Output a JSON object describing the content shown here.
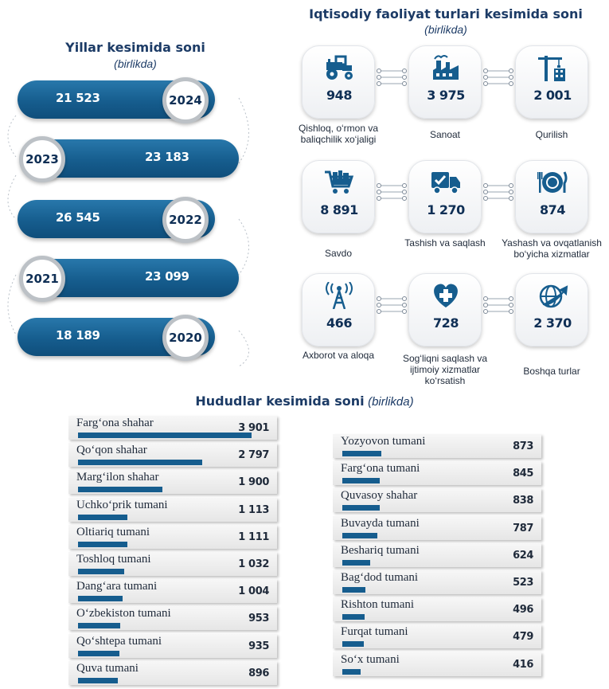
{
  "years_section": {
    "title": "Yillar kesimida soni",
    "unit": "(birlikda)"
  },
  "activity_section": {
    "title": "Iqtisodiy faoliyat turlari kesimida soni",
    "unit": "(birlikda)"
  },
  "regions_section": {
    "title": "Hududlar kesimida soni",
    "unit": "(birlikda)"
  },
  "colors": {
    "primary": "#165d8e",
    "dark_text": "#0f2f55",
    "title": "#1c3b66"
  },
  "chart_data": [
    {
      "type": "bar",
      "title": "Yillar kesimida soni",
      "categories": [
        "2024",
        "2023",
        "2022",
        "2021",
        "2020"
      ],
      "values": [
        21523,
        23183,
        26545,
        23099,
        18189
      ],
      "labels": [
        "21 523",
        "23 183",
        "26 545",
        "23 099",
        "18 189"
      ]
    },
    {
      "type": "table",
      "title": "Iqtisodiy faoliyat turlari kesimida soni",
      "items": [
        {
          "label": "Qishloq, o‘rmon va baliqchilik xo‘jaligi",
          "value": 948,
          "display": "948",
          "icon": "tractor-icon"
        },
        {
          "label": "Sanoat",
          "value": 3975,
          "display": "3 975",
          "icon": "factory-icon"
        },
        {
          "label": "Qurilish",
          "value": 2001,
          "display": "2 001",
          "icon": "crane-icon"
        },
        {
          "label": "Savdo",
          "value": 8891,
          "display": "8 891",
          "icon": "shopping-cart-icon"
        },
        {
          "label": "Tashish va saqlash",
          "value": 1270,
          "display": "1 270",
          "icon": "delivery-truck-icon"
        },
        {
          "label": "Yashash va ovqatlanish bo‘yicha xizmatlar",
          "value": 874,
          "display": "874",
          "icon": "plate-cutlery-icon"
        },
        {
          "label": "Axborot va aloqa",
          "value": 466,
          "display": "466",
          "icon": "antenna-tower-icon"
        },
        {
          "label": "Sog‘liqni saqlash va ijtimoiy xizmatlar ko‘rsatish",
          "value": 728,
          "display": "728",
          "icon": "medical-heart-icon"
        },
        {
          "label": "Boshqa turlar",
          "value": 2370,
          "display": "2 370",
          "icon": "globe-arrow-icon"
        }
      ]
    },
    {
      "type": "bar",
      "title": "Hududlar kesimida soni",
      "orientation": "horizontal",
      "categories": [
        "Farg‘ona shahar",
        "Qo‘qon shahar",
        "Marg‘ilon shahar",
        "Uchko‘prik tumani",
        "Oltiariq tumani",
        "Toshloq tumani",
        "Dang‘ara tumani",
        "O‘zbekiston tumani",
        "Qo‘shtepa tumani",
        "Quva tumani",
        "Yozyovon tumani",
        "Farg‘ona tumani",
        "Quvasoy shahar",
        "Buvayda tumani",
        "Beshariq tumani",
        "Bag‘dod tumani",
        "Rishton tumani",
        "Furqat tumani",
        "So‘x tumani"
      ],
      "values": [
        3901,
        2797,
        1900,
        1113,
        1111,
        1032,
        1004,
        953,
        935,
        896,
        873,
        845,
        838,
        787,
        624,
        523,
        496,
        479,
        416
      ],
      "labels": [
        "3 901",
        "2 797",
        "1 900",
        "1 113",
        "1 111",
        "1 032",
        "1 004",
        "953",
        "935",
        "896",
        "873",
        "845",
        "838",
        "787",
        "624",
        "523",
        "496",
        "479",
        "416"
      ]
    }
  ]
}
